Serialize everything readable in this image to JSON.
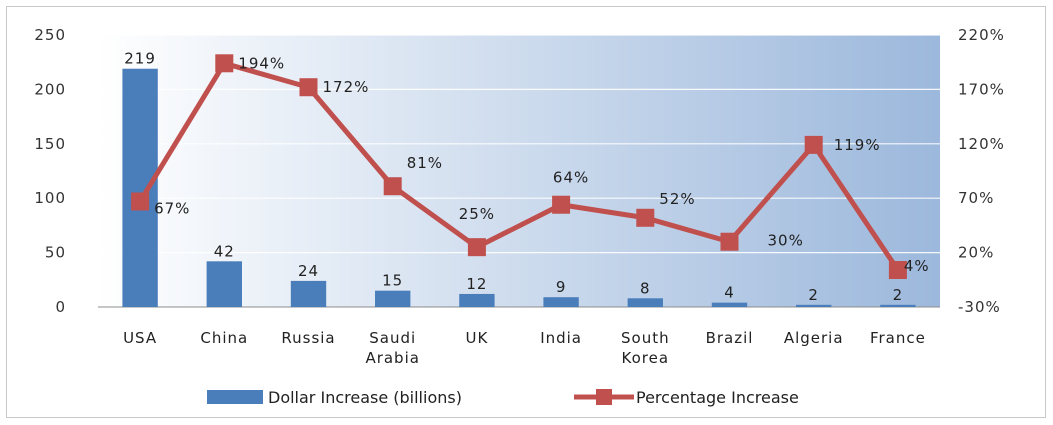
{
  "chart_data": {
    "type": "bar",
    "title": "",
    "categories": [
      [
        "USA"
      ],
      [
        "China"
      ],
      [
        "Russia"
      ],
      [
        "Saudi",
        "Arabia"
      ],
      [
        "UK"
      ],
      [
        "India"
      ],
      [
        "South",
        "Korea"
      ],
      [
        "Brazil"
      ],
      [
        "Algeria"
      ],
      [
        "France"
      ]
    ],
    "series": [
      {
        "name": "Dollar Increase (billions)",
        "type": "bar",
        "axis": "left",
        "color": "#4a7ebb",
        "values": [
          219,
          42,
          24,
          15,
          12,
          9,
          8,
          4,
          2,
          2
        ],
        "labels": [
          "219",
          "42",
          "24",
          "15",
          "12",
          "9",
          "8",
          "4",
          "2",
          "2"
        ]
      },
      {
        "name": "Percentage Increase",
        "type": "line",
        "axis": "right",
        "color": "#c0504d",
        "values": [
          67,
          194,
          172,
          81,
          25,
          64,
          52,
          30,
          119,
          4
        ],
        "labels": [
          "67%",
          "194%",
          "172%",
          "81%",
          "25%",
          "64%",
          "52%",
          "30%",
          "119%",
          "4%"
        ]
      }
    ],
    "y_left": {
      "ylim": [
        0,
        250
      ],
      "ticks": [
        "0",
        "50",
        "100",
        "150",
        "200",
        "250"
      ]
    },
    "y_right": {
      "ylim": [
        -30,
        220
      ],
      "ticks": [
        "-30%",
        "20%",
        "70%",
        "120%",
        "170%",
        "220%"
      ]
    },
    "grid": true,
    "legend": "bottom-center"
  }
}
